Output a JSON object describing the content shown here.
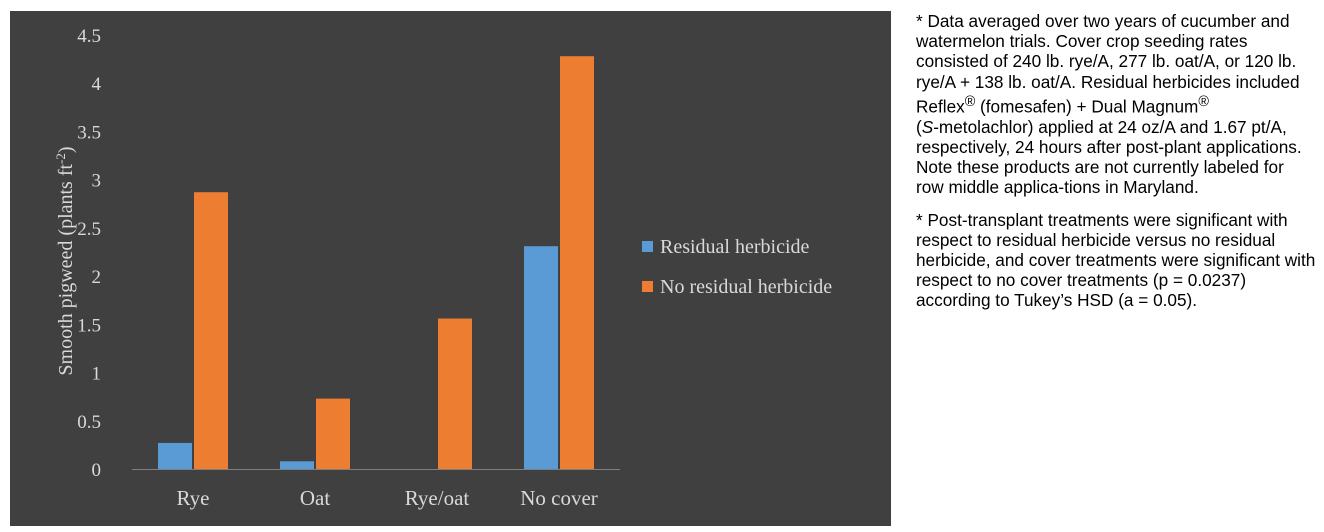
{
  "chart_data": {
    "type": "bar",
    "categories": [
      "Rye",
      "Oat",
      "Rye/oat",
      "No cover"
    ],
    "series": [
      {
        "name": "Residual herbicide",
        "values": [
          0.27,
          0.08,
          0,
          2.31
        ]
      },
      {
        "name": "No residual herbicide",
        "values": [
          2.87,
          0.73,
          1.56,
          4.28
        ]
      }
    ],
    "title": "",
    "xlabel": "",
    "ylabel_main": "Smooth pigweed (plants ft",
    "ylabel_sup": "-2",
    "ylabel_end": ")",
    "ylim": [
      0,
      4.5
    ],
    "yticks": [
      "0",
      "0.5",
      "1",
      "1.5",
      "2",
      "2.5",
      "3",
      "3.5",
      "4",
      "4.5"
    ],
    "grid": false,
    "legend_position": "right"
  },
  "colors": {
    "panel_bg": "#404040",
    "series": [
      "#5b9bd5",
      "#ed7d31"
    ],
    "text": "#d9d9d9"
  },
  "notes": {
    "note1": {
      "p1": "* Data averaged over two years of cucumber and watermelon trials. Cover crop seeding rates consisted of 240 lb. rye/A, 277 lb. oat/A, or 120 lb. rye/A + 138 lb. oat/A. Residual herbicides included Reflex",
      "reg": "®",
      "p2": " (fomesafen) + Dual Magnum",
      "p3": " (",
      "italic": "S",
      "p4": "-metolachlor) applied at 24 oz/A and 1.67 pt/A, respectively, 24 hours after post-plant applications. Note these products are not currently labeled for row middle applica-tions in Maryland."
    },
    "note2": "* Post-transplant treatments were significant with respect to residual herbicide versus no residual herbicide, and cover treatments were significant with respect to no cover treatments (p = 0.0237) according to Tukey’s HSD (a = 0.05)."
  }
}
